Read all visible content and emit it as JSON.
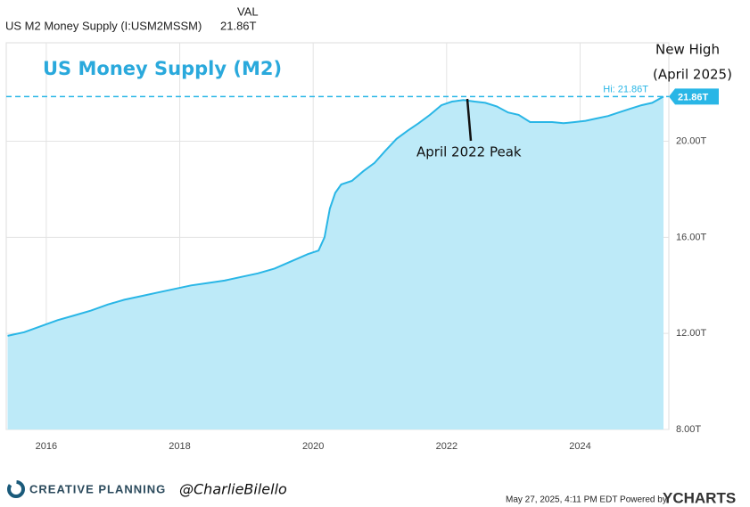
{
  "header": {
    "series_name": "US M2 Money Supply (I:USM2MSSM)",
    "column": "VAL",
    "value": "21.86T"
  },
  "chart_data": {
    "type": "area",
    "title": "US Money Supply (M2)",
    "x": [
      2015.42,
      2015.67,
      2015.92,
      2016.17,
      2016.42,
      2016.67,
      2016.92,
      2017.17,
      2017.42,
      2017.67,
      2017.92,
      2018.17,
      2018.42,
      2018.67,
      2018.92,
      2019.17,
      2019.42,
      2019.67,
      2019.92,
      2020.08,
      2020.17,
      2020.25,
      2020.33,
      2020.42,
      2020.58,
      2020.75,
      2020.92,
      2021.08,
      2021.25,
      2021.42,
      2021.58,
      2021.75,
      2021.92,
      2022.08,
      2022.25,
      2022.42,
      2022.58,
      2022.75,
      2022.92,
      2023.08,
      2023.25,
      2023.42,
      2023.58,
      2023.75,
      2023.92,
      2024.08,
      2024.25,
      2024.42,
      2024.58,
      2024.75,
      2024.92,
      2025.08,
      2025.25
    ],
    "values": [
      11.9,
      12.05,
      12.3,
      12.55,
      12.75,
      12.95,
      13.2,
      13.4,
      13.55,
      13.7,
      13.85,
      14.0,
      14.1,
      14.2,
      14.35,
      14.5,
      14.7,
      15.0,
      15.3,
      15.45,
      16.0,
      17.2,
      17.85,
      18.2,
      18.35,
      18.75,
      19.1,
      19.6,
      20.1,
      20.45,
      20.75,
      21.1,
      21.5,
      21.65,
      21.72,
      21.65,
      21.6,
      21.45,
      21.2,
      21.1,
      20.8,
      20.8,
      20.8,
      20.75,
      20.8,
      20.85,
      20.95,
      21.05,
      21.2,
      21.35,
      21.5,
      21.6,
      21.86
    ],
    "color": "#29b6e6",
    "fill": "#bdeaf8",
    "xlim": [
      2015.4,
      2025.33
    ],
    "xticks": [
      2016,
      2018,
      2020,
      2022,
      2024
    ],
    "ylim": [
      8,
      24.1
    ],
    "yticks": [
      {
        "value": 8,
        "label": "8.00T"
      },
      {
        "value": 12,
        "label": "12.00T"
      },
      {
        "value": 16,
        "label": "16.00T"
      },
      {
        "value": 20,
        "label": "20.00T"
      }
    ],
    "grid": true,
    "hi": {
      "value": 21.86,
      "label": "Hi: 21.86T"
    },
    "last_label": "21.86T",
    "annotations": [
      "April 2022 Peak",
      "New High",
      "(April 2025)"
    ]
  },
  "footer": {
    "brand": "CREATIVE PLANNING",
    "handle": "@CharlieBilello",
    "timestamp": "May 27, 2025, 4:11 PM EDT Powered by",
    "logo": "YCHARTS"
  }
}
